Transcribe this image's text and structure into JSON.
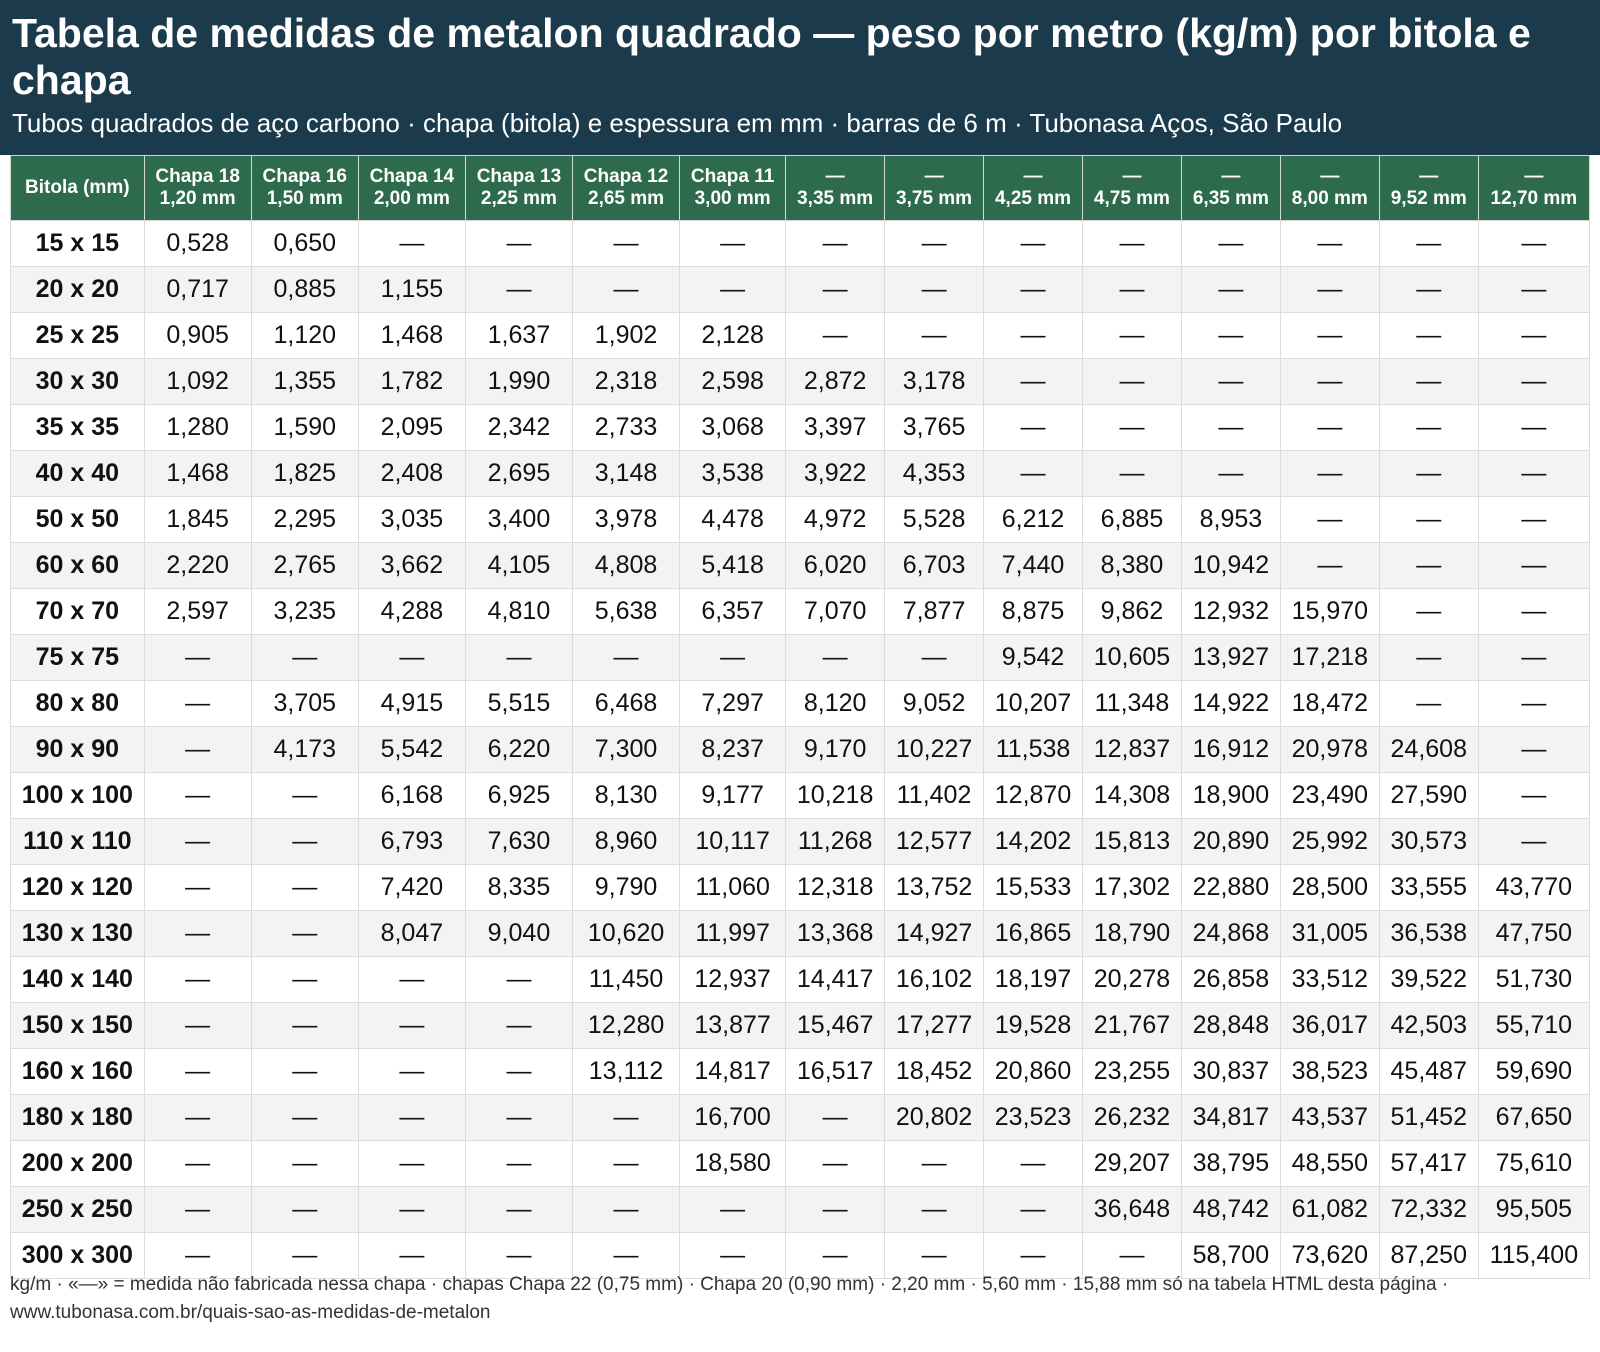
{
  "header": {
    "title": "Tabela de medidas de metalon quadrado — peso por metro (kg/m) por bitola e chapa",
    "subtitle": "Tubos quadrados de aço carbono · chapa (bitola) e espessura em mm · barras de 6 m · Tubonasa Aços, São Paulo"
  },
  "table": {
    "columns": [
      "Bitola (mm)",
      "Chapa 18\n1,20 mm",
      "Chapa 16\n1,50 mm",
      "Chapa 14\n2,00 mm",
      "Chapa 13\n2,25 mm",
      "Chapa 12\n2,65 mm",
      "Chapa 11\n3,00 mm",
      "—\n3,35 mm",
      "—\n3,75 mm",
      "—\n4,25 mm",
      "—\n4,75 mm",
      "—\n6,35 mm",
      "—\n8,00 mm",
      "—\n9,52 mm",
      "—\n12,70 mm"
    ],
    "rows": [
      [
        "15 x 15",
        "0,528",
        "0,650",
        "—",
        "—",
        "—",
        "—",
        "—",
        "—",
        "—",
        "—",
        "—",
        "—",
        "—",
        "—"
      ],
      [
        "20 x 20",
        "0,717",
        "0,885",
        "1,155",
        "—",
        "—",
        "—",
        "—",
        "—",
        "—",
        "—",
        "—",
        "—",
        "—",
        "—"
      ],
      [
        "25 x 25",
        "0,905",
        "1,120",
        "1,468",
        "1,637",
        "1,902",
        "2,128",
        "—",
        "—",
        "—",
        "—",
        "—",
        "—",
        "—",
        "—"
      ],
      [
        "30 x 30",
        "1,092",
        "1,355",
        "1,782",
        "1,990",
        "2,318",
        "2,598",
        "2,872",
        "3,178",
        "—",
        "—",
        "—",
        "—",
        "—",
        "—"
      ],
      [
        "35 x 35",
        "1,280",
        "1,590",
        "2,095",
        "2,342",
        "2,733",
        "3,068",
        "3,397",
        "3,765",
        "—",
        "—",
        "—",
        "—",
        "—",
        "—"
      ],
      [
        "40 x 40",
        "1,468",
        "1,825",
        "2,408",
        "2,695",
        "3,148",
        "3,538",
        "3,922",
        "4,353",
        "—",
        "—",
        "—",
        "—",
        "—",
        "—"
      ],
      [
        "50 x 50",
        "1,845",
        "2,295",
        "3,035",
        "3,400",
        "3,978",
        "4,478",
        "4,972",
        "5,528",
        "6,212",
        "6,885",
        "8,953",
        "—",
        "—",
        "—"
      ],
      [
        "60 x 60",
        "2,220",
        "2,765",
        "3,662",
        "4,105",
        "4,808",
        "5,418",
        "6,020",
        "6,703",
        "7,440",
        "8,380",
        "10,942",
        "—",
        "—",
        "—"
      ],
      [
        "70 x 70",
        "2,597",
        "3,235",
        "4,288",
        "4,810",
        "5,638",
        "6,357",
        "7,070",
        "7,877",
        "8,875",
        "9,862",
        "12,932",
        "15,970",
        "—",
        "—"
      ],
      [
        "75 x 75",
        "—",
        "—",
        "—",
        "—",
        "—",
        "—",
        "—",
        "—",
        "9,542",
        "10,605",
        "13,927",
        "17,218",
        "—",
        "—"
      ],
      [
        "80 x 80",
        "—",
        "3,705",
        "4,915",
        "5,515",
        "6,468",
        "7,297",
        "8,120",
        "9,052",
        "10,207",
        "11,348",
        "14,922",
        "18,472",
        "—",
        "—"
      ],
      [
        "90 x 90",
        "—",
        "4,173",
        "5,542",
        "6,220",
        "7,300",
        "8,237",
        "9,170",
        "10,227",
        "11,538",
        "12,837",
        "16,912",
        "20,978",
        "24,608",
        "—"
      ],
      [
        "100 x 100",
        "—",
        "—",
        "6,168",
        "6,925",
        "8,130",
        "9,177",
        "10,218",
        "11,402",
        "12,870",
        "14,308",
        "18,900",
        "23,490",
        "27,590",
        "—"
      ],
      [
        "110 x 110",
        "—",
        "—",
        "6,793",
        "7,630",
        "8,960",
        "10,117",
        "11,268",
        "12,577",
        "14,202",
        "15,813",
        "20,890",
        "25,992",
        "30,573",
        "—"
      ],
      [
        "120 x 120",
        "—",
        "—",
        "7,420",
        "8,335",
        "9,790",
        "11,060",
        "12,318",
        "13,752",
        "15,533",
        "17,302",
        "22,880",
        "28,500",
        "33,555",
        "43,770"
      ],
      [
        "130 x 130",
        "—",
        "—",
        "8,047",
        "9,040",
        "10,620",
        "11,997",
        "13,368",
        "14,927",
        "16,865",
        "18,790",
        "24,868",
        "31,005",
        "36,538",
        "47,750"
      ],
      [
        "140 x 140",
        "—",
        "—",
        "—",
        "—",
        "11,450",
        "12,937",
        "14,417",
        "16,102",
        "18,197",
        "20,278",
        "26,858",
        "33,512",
        "39,522",
        "51,730"
      ],
      [
        "150 x 150",
        "—",
        "—",
        "—",
        "—",
        "12,280",
        "13,877",
        "15,467",
        "17,277",
        "19,528",
        "21,767",
        "28,848",
        "36,017",
        "42,503",
        "55,710"
      ],
      [
        "160 x 160",
        "—",
        "—",
        "—",
        "—",
        "13,112",
        "14,817",
        "16,517",
        "18,452",
        "20,860",
        "23,255",
        "30,837",
        "38,523",
        "45,487",
        "59,690"
      ],
      [
        "180 x 180",
        "—",
        "—",
        "—",
        "—",
        "—",
        "16,700",
        "—",
        "20,802",
        "23,523",
        "26,232",
        "34,817",
        "43,537",
        "51,452",
        "67,650"
      ],
      [
        "200 x 200",
        "—",
        "—",
        "—",
        "—",
        "—",
        "18,580",
        "—",
        "—",
        "—",
        "29,207",
        "38,795",
        "48,550",
        "57,417",
        "75,610"
      ],
      [
        "250 x 250",
        "—",
        "—",
        "—",
        "—",
        "—",
        "—",
        "—",
        "—",
        "—",
        "36,648",
        "48,742",
        "61,082",
        "72,332",
        "95,505"
      ],
      [
        "300 x 300",
        "—",
        "—",
        "—",
        "—",
        "—",
        "—",
        "—",
        "—",
        "—",
        "—",
        "58,700",
        "73,620",
        "87,250",
        "115,400"
      ]
    ]
  },
  "footer": {
    "note": "kg/m · «—» = medida não fabricada nessa chapa · chapas Chapa 22 (0,75 mm) · Chapa 20 (0,90 mm) · 2,20 mm · 5,60 mm · 15,88 mm só na tabela HTML desta página · www.tubonasa.com.br/quais-sao-as-medidas-de-metalon"
  },
  "colors": {
    "header_bg": "#1b3a4b",
    "table_header_bg": "#2e6b4d",
    "zebra_row_bg": "#f1f4f2"
  }
}
